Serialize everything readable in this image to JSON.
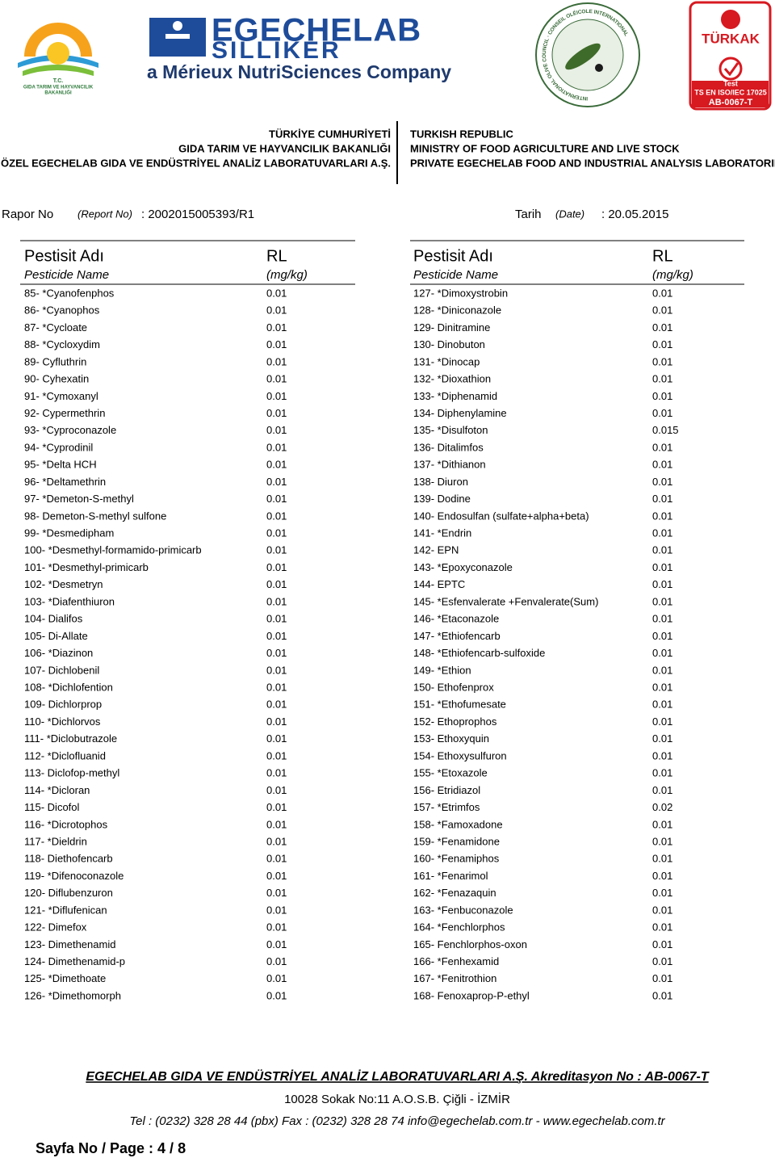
{
  "logos": {
    "ministry": {
      "line1": "T.C.",
      "line2": "GIDA TARIM VE HAYVANCILIK",
      "line3": "BAKANLIĞI"
    },
    "company": {
      "name1": "EGECHELAB",
      "name2": "SILLIKER",
      "tagline": "a Mérieux NutriSciences Company"
    },
    "olive_council": {
      "ring": "INTERNATIONAL OLIVE COUNCIL · CONSEIL OLÉICOLE INTERNATIONAL"
    },
    "turkak": {
      "name": "TÜRKAK",
      "test": "Test",
      "standard": "TS EN ISO/IEC 17025",
      "code": "AB-0067-T"
    }
  },
  "institution": {
    "tr": [
      "TÜRKİYE CUMHURİYETİ",
      "GIDA TARIM VE HAYVANCILIK BAKANLIĞI",
      "ÖZEL EGECHELAB GIDA VE ENDÜSTRİYEL ANALİZ LABORATUVARLARI A.Ş."
    ],
    "en": [
      "TURKISH REPUBLIC",
      "MINISTRY OF FOOD AGRICULTURE AND LIVE STOCK",
      "PRIVATE EGECHELAB FOOD AND INDUSTRIAL ANALYSIS LABORATORIES"
    ]
  },
  "report": {
    "no_label": "Rapor No",
    "no_label_en": "(Report No)",
    "no_value": ": 2002015005393/R1",
    "date_label": "Tarih",
    "date_label_en": "(Date)",
    "date_value": ": 20.05.2015"
  },
  "columns": [
    {
      "header": {
        "name_tr": "Pestisit Adı",
        "name_en": "Pesticide Name",
        "rl": "RL",
        "unit": "(mg/kg)"
      },
      "rows": [
        [
          "85- *Cyanofenphos",
          "0.01"
        ],
        [
          "86- *Cyanophos",
          "0.01"
        ],
        [
          "87- *Cycloate",
          "0.01"
        ],
        [
          "88- *Cycloxydim",
          "0.01"
        ],
        [
          "89- Cyfluthrin",
          "0.01"
        ],
        [
          "90- Cyhexatin",
          "0.01"
        ],
        [
          "91- *Cymoxanyl",
          "0.01"
        ],
        [
          "92- Cypermethrin",
          "0.01"
        ],
        [
          "93- *Cyproconazole",
          "0.01"
        ],
        [
          "94- *Cyprodinil",
          "0.01"
        ],
        [
          "95- *Delta HCH",
          "0.01"
        ],
        [
          "96- *Deltamethrin",
          "0.01"
        ],
        [
          "97- *Demeton-S-methyl",
          "0.01"
        ],
        [
          "98- Demeton-S-methyl sulfone",
          "0.01"
        ],
        [
          "99- *Desmedipham",
          "0.01"
        ],
        [
          "100- *Desmethyl-formamido-primicarb",
          "0.01"
        ],
        [
          "101- *Desmethyl-primicarb",
          "0.01"
        ],
        [
          "102- *Desmetryn",
          "0.01"
        ],
        [
          "103- *Diafenthiuron",
          "0.01"
        ],
        [
          "104- Dialifos",
          "0.01"
        ],
        [
          "105- Di-Allate",
          "0.01"
        ],
        [
          "106- *Diazinon",
          "0.01"
        ],
        [
          "107- Dichlobenil",
          "0.01"
        ],
        [
          "108- *Dichlofention",
          "0.01"
        ],
        [
          "109- Dichlorprop",
          "0.01"
        ],
        [
          "110- *Dichlorvos",
          "0.01"
        ],
        [
          "111- *Diclobutrazole",
          "0.01"
        ],
        [
          "112- *Diclofluanid",
          "0.01"
        ],
        [
          "113- Diclofop-methyl",
          "0.01"
        ],
        [
          "114- *Dicloran",
          "0.01"
        ],
        [
          "115- Dicofol",
          "0.01"
        ],
        [
          "116- *Dicrotophos",
          "0.01"
        ],
        [
          "117- *Dieldrin",
          "0.01"
        ],
        [
          "118- Diethofencarb",
          "0.01"
        ],
        [
          "119- *Difenoconazole",
          "0.01"
        ],
        [
          "120- Diflubenzuron",
          "0.01"
        ],
        [
          "121- *Diflufenican",
          "0.01"
        ],
        [
          "122- Dimefox",
          "0.01"
        ],
        [
          "123- Dimethenamid",
          "0.01"
        ],
        [
          "124- Dimethenamid-p",
          "0.01"
        ],
        [
          "125- *Dimethoate",
          "0.01"
        ],
        [
          "126- *Dimethomorph",
          "0.01"
        ]
      ]
    },
    {
      "header": {
        "name_tr": "Pestisit Adı",
        "name_en": "Pesticide Name",
        "rl": "RL",
        "unit": "(mg/kg)"
      },
      "rows": [
        [
          "127- *Dimoxystrobin",
          "0.01"
        ],
        [
          "128- *Diniconazole",
          "0.01"
        ],
        [
          "129- Dinitramine",
          "0.01"
        ],
        [
          "130- Dinobuton",
          "0.01"
        ],
        [
          "131- *Dinocap",
          "0.01"
        ],
        [
          "132- *Dioxathion",
          "0.01"
        ],
        [
          "133- *Diphenamid",
          "0.01"
        ],
        [
          "134- Diphenylamine",
          "0.01"
        ],
        [
          "135- *Disulfoton",
          "0.015"
        ],
        [
          "136- Ditalimfos",
          "0.01"
        ],
        [
          "137- *Dithianon",
          "0.01"
        ],
        [
          "138- Diuron",
          "0.01"
        ],
        [
          "139- Dodine",
          "0.01"
        ],
        [
          "140- Endosulfan (sulfate+alpha+beta)",
          "0.01"
        ],
        [
          "141- *Endrin",
          "0.01"
        ],
        [
          "142- EPN",
          "0.01"
        ],
        [
          "143- *Epoxyconazole",
          "0.01"
        ],
        [
          "144- EPTC",
          "0.01"
        ],
        [
          "145- *Esfenvalerate +Fenvalerate(Sum)",
          "0.01"
        ],
        [
          "146- *Etaconazole",
          "0.01"
        ],
        [
          "147- *Ethiofencarb",
          "0.01"
        ],
        [
          "148- *Ethiofencarb-sulfoxide",
          "0.01"
        ],
        [
          "149- *Ethion",
          "0.01"
        ],
        [
          "150- Ethofenprox",
          "0.01"
        ],
        [
          "151- *Ethofumesate",
          "0.01"
        ],
        [
          "152- Ethoprophos",
          "0.01"
        ],
        [
          "153- Ethoxyquin",
          "0.01"
        ],
        [
          "154- Ethoxysulfuron",
          "0.01"
        ],
        [
          "155- *Etoxazole",
          "0.01"
        ],
        [
          "156- Etridiazol",
          "0.01"
        ],
        [
          "157- *Etrimfos",
          "0.02"
        ],
        [
          "158- *Famoxadone",
          "0.01"
        ],
        [
          "159- *Fenamidone",
          "0.01"
        ],
        [
          "160- *Fenamiphos",
          "0.01"
        ],
        [
          "161- *Fenarimol",
          "0.01"
        ],
        [
          "162- *Fenazaquin",
          "0.01"
        ],
        [
          "163- *Fenbuconazole",
          "0.01"
        ],
        [
          "164- *Fenchlorphos",
          "0.01"
        ],
        [
          "165- Fenchlorphos-oxon",
          "0.01"
        ],
        [
          "166- *Fenhexamid",
          "0.01"
        ],
        [
          "167- *Fenitrothion",
          "0.01"
        ],
        [
          "168- Fenoxaprop-P-ethyl",
          "0.01"
        ]
      ]
    }
  ],
  "footer": {
    "line1": "EGECHELAB GIDA VE ENDÜSTRİYEL ANALİZ LABORATUVARLARI A.Ş. Akreditasyon No : AB-0067-T",
    "line2": "10028  Sokak No:11 A.O.S.B. Çiğli - İZMİR",
    "line3": "Tel : (0232) 328 28 44  (pbx)  Fax : (0232) 328 28 74  info@egechelab.com.tr - www.egechelab.com.tr",
    "page": "Sayfa No / Page : 4 / 8"
  }
}
